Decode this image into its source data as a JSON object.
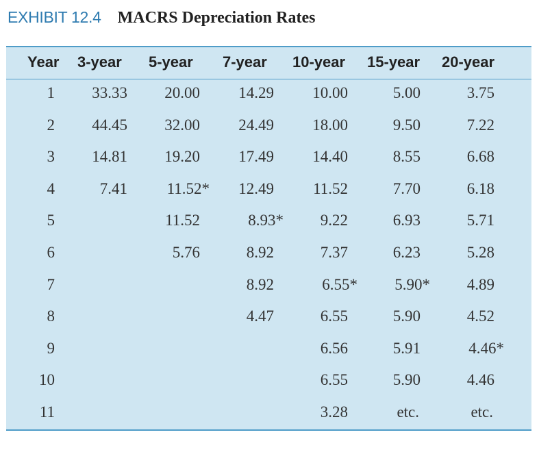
{
  "exhibit_label": "EXHIBIT 12.4",
  "title": "MACRS Depreciation Rates",
  "colors": {
    "accent": "#2e7bb0",
    "panel": "#cfe6f2",
    "rule": "#4f9cc8"
  },
  "columns": [
    "Year",
    "3-year",
    "5-year",
    "7-year",
    "10-year",
    "15-year",
    "20-year"
  ],
  "rows": [
    [
      "1",
      "33.33",
      "20.00",
      "14.29",
      "10.00",
      "5.00",
      "3.75"
    ],
    [
      "2",
      "44.45",
      "32.00",
      "24.49",
      "18.00",
      "9.50",
      "7.22"
    ],
    [
      "3",
      "14.81",
      "19.20",
      "17.49",
      "14.40",
      "8.55",
      "6.68"
    ],
    [
      "4",
      "7.41",
      "11.52*",
      "12.49",
      "11.52",
      "7.70",
      "6.18"
    ],
    [
      "5",
      "",
      "11.52",
      "8.93*",
      "9.22",
      "6.93",
      "5.71"
    ],
    [
      "6",
      "",
      "5.76",
      "8.92",
      "7.37",
      "6.23",
      "5.28"
    ],
    [
      "7",
      "",
      "",
      "8.92",
      "6.55*",
      "5.90*",
      "4.89"
    ],
    [
      "8",
      "",
      "",
      "4.47",
      "6.55",
      "5.90",
      "4.52"
    ],
    [
      "9",
      "",
      "",
      "",
      "6.56",
      "5.91",
      "4.46*"
    ],
    [
      "10",
      "",
      "",
      "",
      "6.55",
      "5.90",
      "4.46"
    ],
    [
      "11",
      "",
      "",
      "",
      "3.28",
      "etc.",
      "etc."
    ]
  ]
}
